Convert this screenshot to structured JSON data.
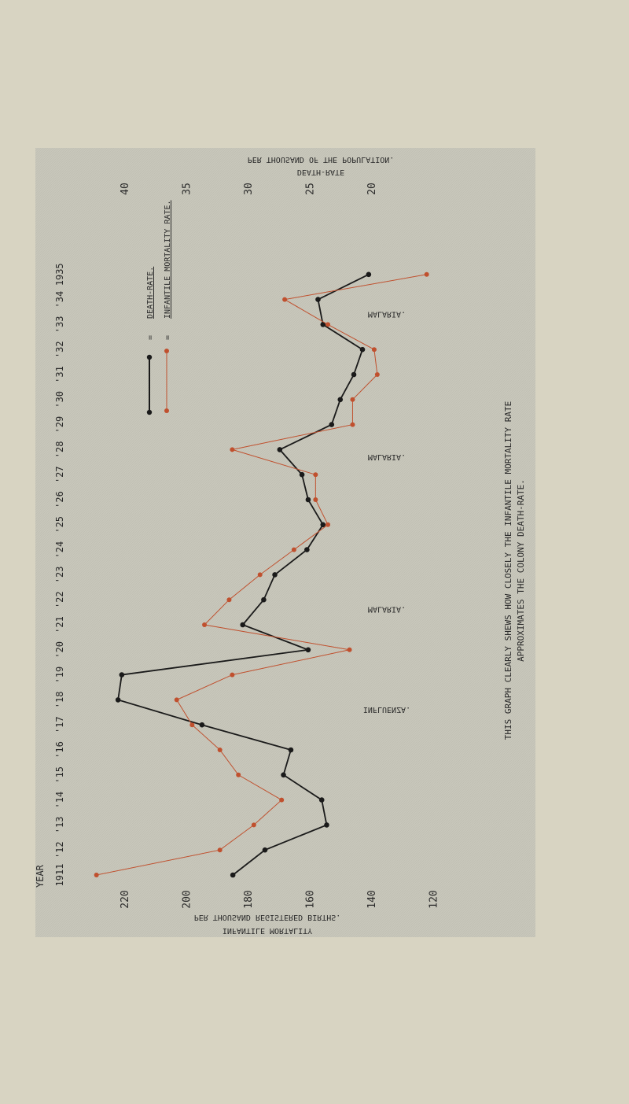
{
  "chart_data": {
    "type": "line",
    "orientation": "rotated 90 degrees (years run bottom to top, values run left to right)",
    "x_label": "YEAR",
    "x_tick_labels": [
      "1911",
      "'12",
      "'13",
      "'14",
      "'15",
      "'16",
      "'17",
      "'18",
      "'19",
      "'20",
      "'21",
      "'22",
      "'23",
      "'24",
      "'25",
      "'26",
      "'27",
      "'28",
      "'29",
      "'30",
      "'31",
      "'32",
      "'33",
      "'34",
      "1935"
    ],
    "years": [
      1911,
      1912,
      1913,
      1914,
      1915,
      1916,
      1917,
      1918,
      1919,
      1920,
      1921,
      1922,
      1923,
      1924,
      1925,
      1926,
      1927,
      1928,
      1929,
      1930,
      1931,
      1932,
      1933,
      1934,
      1935
    ],
    "axis_death_rate": {
      "label_line1": "DEATH-RATE",
      "label_line2": "PER THOUSAND OF THE POPULATION.",
      "ticks": [
        "40",
        "35",
        "30",
        "25",
        "20"
      ],
      "range": [
        40,
        17
      ]
    },
    "axis_imr": {
      "label_line1": "INFANTILE MORTALITY",
      "label_line2": "PER THOUSAND REGISTERED BIRTHS.",
      "ticks": [
        "220",
        "200",
        "180",
        "160",
        "140",
        "120"
      ],
      "range": [
        220,
        128
      ]
    },
    "series": [
      {
        "name": "DEATH-RATE.",
        "color": "#1a1a1a",
        "axis": "death_rate",
        "values": [
          31.2,
          28.6,
          23.6,
          24.0,
          27.1,
          26.5,
          33.7,
          40.5,
          40.2,
          25.1,
          30.4,
          28.7,
          27.8,
          25.2,
          23.9,
          25.1,
          25.6,
          27.4,
          23.2,
          22.5,
          21.4,
          20.7,
          23.9,
          24.3,
          20.2
        ]
      },
      {
        "name": "INFANTILE MORTALITY RATE.",
        "color": "#c0502e",
        "axis": "imr",
        "values": [
          229,
          189,
          178,
          169,
          183,
          189,
          198,
          203,
          185,
          147,
          194,
          186,
          176,
          165,
          154,
          158,
          158,
          185,
          146,
          146,
          138,
          139,
          154,
          168,
          122
        ]
      }
    ],
    "legend_ditto": "=",
    "annotations": [
      {
        "text": "MALARIA.",
        "year": 1933.5
      },
      {
        "text": "MALARIA.",
        "year": 1927.8
      },
      {
        "text": "MALARIA.",
        "year": 1921.7
      },
      {
        "text": "INFLUENZA.",
        "year": 1917.7
      }
    ],
    "caption_line1": "THIS GRAPH CLEARLY SHEWS HOW CLOSELY THE INFANTILE MORTALITY RATE",
    "caption_line2": "APPROXIMATES THE COLONY DEATH-RATE.",
    "grid": false
  }
}
